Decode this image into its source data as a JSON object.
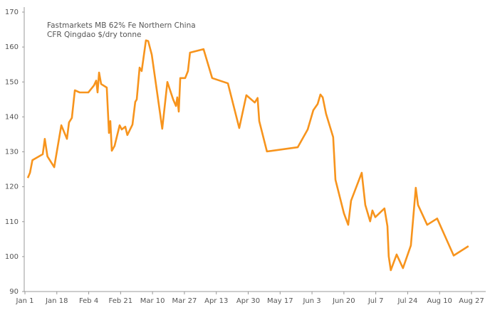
{
  "chart_data": {
    "type": "line",
    "title": [
      "Fastmarkets MB 62% Fe Northern China",
      "CFR Qingdao $/dry tonne"
    ],
    "color": "#f7941d",
    "grid": false,
    "xlim": [
      0,
      238
    ],
    "xticks": [
      {
        "value": 0,
        "label": "Jan 1"
      },
      {
        "value": 17,
        "label": "Jan 18"
      },
      {
        "value": 34,
        "label": "Feb 4"
      },
      {
        "value": 51,
        "label": "Feb 21"
      },
      {
        "value": 68,
        "label": "Mar 10"
      },
      {
        "value": 85,
        "label": "Mar 27"
      },
      {
        "value": 102,
        "label": "Apr 13"
      },
      {
        "value": 119,
        "label": "Apr 30"
      },
      {
        "value": 136,
        "label": "May 17"
      },
      {
        "value": 153,
        "label": "Jun 3"
      },
      {
        "value": 170,
        "label": "Jun 20"
      },
      {
        "value": 187,
        "label": "Jul 7"
      },
      {
        "value": 204,
        "label": "Jul 24"
      },
      {
        "value": 221,
        "label": "Aug 10"
      },
      {
        "value": 238,
        "label": "Aug 27"
      }
    ],
    "ylim": [
      90,
      170
    ],
    "yticks": [
      90,
      100,
      110,
      120,
      130,
      140,
      150,
      160,
      170
    ],
    "x": [
      1.5,
      2.7,
      4,
      9.5,
      10.6,
      12,
      15.6,
      19.4,
      22.4,
      23.5,
      25,
      26.6,
      29.2,
      33.8,
      36.8,
      38,
      38.7,
      39.5,
      40.6,
      43.6,
      44.8,
      45.5,
      46.3,
      47.8,
      50.5,
      51.6,
      53.5,
      54.6,
      57.3,
      58.8,
      59.6,
      61.1,
      62.2,
      64.5,
      65.7,
      67.6,
      73.2,
      75.9,
      79,
      80.5,
      81.2,
      82,
      82.8,
      85.4,
      86.9,
      88,
      95.2,
      99.8,
      108.2,
      114.2,
      118,
      122.5,
      124,
      124.9,
      129,
      145.4,
      150.7,
      153.7,
      156,
      157.5,
      158.7,
      160.5,
      164.3,
      165.5,
      170,
      172.3,
      173.8,
      179.5,
      181.4,
      184,
      185.2,
      186.7,
      191.6,
      193.2,
      193.9,
      195,
      198.1,
      201.5,
      205.7,
      208.3,
      209.5,
      214.4,
      219.7,
      228.5,
      236.4
    ],
    "values": [
      122.5,
      124,
      127.6,
      129.3,
      133.7,
      128.7,
      125.6,
      137.6,
      133.7,
      138.4,
      139.7,
      147.6,
      147,
      147,
      149,
      150.4,
      147,
      152.7,
      149.4,
      148.4,
      135.4,
      138.8,
      130.3,
      131.7,
      137.6,
      136.4,
      137.2,
      134.8,
      137.8,
      144.3,
      145,
      154.1,
      153.1,
      161.9,
      161.7,
      157.8,
      136.6,
      150,
      145,
      143.1,
      145.6,
      141.5,
      151.1,
      151.1,
      153.1,
      158.4,
      159.4,
      151.1,
      149.6,
      136.8,
      146.2,
      144.1,
      145.4,
      138.8,
      130.1,
      131.3,
      136.4,
      141.9,
      143.7,
      146.4,
      145.6,
      140.9,
      134.2,
      122,
      112.4,
      109.1,
      116,
      124,
      114.8,
      110.1,
      113.2,
      111.3,
      113.8,
      108.7,
      100.1,
      96.1,
      100.6,
      96.7,
      103.2,
      119.7,
      114.8,
      109.1,
      110.9,
      100.3,
      103
    ]
  }
}
